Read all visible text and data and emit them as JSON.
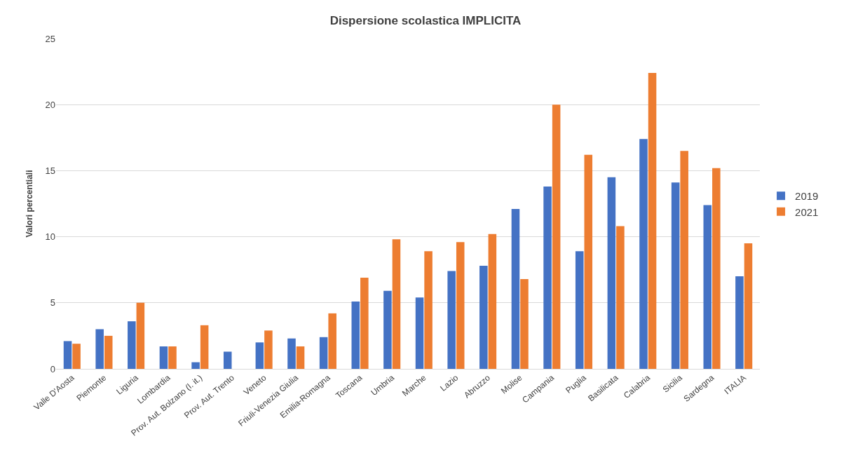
{
  "chart_data": {
    "type": "bar",
    "title": "Dispersione scolastica IMPLICITA",
    "ylabel": "Valori percentiali",
    "categories": [
      "Valle D'Aosta",
      "Piemonte",
      "Liguria",
      "Lombardia",
      "Prov. Aut. Bolzano (l. it.)",
      "Prov. Aut. Trento",
      "Veneto",
      "Friuli-Venezia Giulia",
      "Emilia-Romagna",
      "Toscana",
      "Umbria",
      "Marche",
      "Lazio",
      "Abruzzo",
      "Molise",
      "Campania",
      "Puglia",
      "Basilicata",
      "Calabria",
      "Sicilia",
      "Sardegna",
      "ITALIA"
    ],
    "series": [
      {
        "name": "2019",
        "color": "#4472c4",
        "values": [
          2.1,
          3.0,
          3.6,
          1.7,
          0.5,
          1.3,
          2.0,
          2.3,
          2.4,
          5.1,
          5.9,
          5.4,
          7.4,
          7.8,
          12.1,
          13.8,
          8.9,
          14.5,
          17.4,
          14.1,
          12.4,
          7.0
        ]
      },
      {
        "name": "2021",
        "color": "#ed7d31",
        "values": [
          1.9,
          2.5,
          5.0,
          1.7,
          3.3,
          null,
          2.9,
          1.7,
          4.2,
          6.9,
          9.8,
          8.9,
          9.6,
          10.2,
          6.8,
          20.0,
          16.2,
          10.8,
          22.4,
          16.5,
          15.2,
          9.5
        ]
      }
    ],
    "ylim": [
      0,
      25
    ],
    "yticks": [
      0,
      5,
      10,
      15,
      20,
      25
    ],
    "grid": "y",
    "legend": "right"
  }
}
